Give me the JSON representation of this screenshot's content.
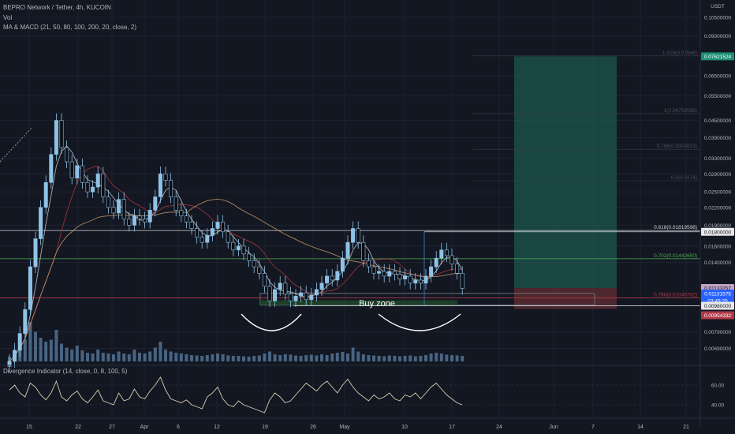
{
  "header": {
    "title": "BEPRO Network / Tether, 4h, KUCOIN",
    "vol_label": "Vol",
    "ma_macd_label": "MA & MACD (21, 50, 80, 100, 200, 20, close, 2)"
  },
  "currency_label": "USDT",
  "oscillator": {
    "label": "Divergence Indicator (14, close, 0, 8, 100, 5)"
  },
  "annotations": {
    "buy_zone": "Buy zone"
  },
  "colors": {
    "background": "#131722",
    "candle_up": "#8fc3e6",
    "candle_down": "#0b0e15",
    "volume": "#5b7fa3",
    "fib_white": "#d1d4dc",
    "fib_green": "#4caf50",
    "fib_red": "#b03a48",
    "target_zone": "#1e574d",
    "stop_zone": "#5a2a30",
    "oscillator_line": "#d8d0b0"
  },
  "chart_data": {
    "type": "candlestick",
    "symbol": "BEPRO/USDT",
    "timeframe": "4h",
    "exchange": "KUCOIN",
    "y_scale": "log",
    "x_ticks": [
      "15",
      "22",
      "27",
      "Apr",
      "6",
      "12",
      "19",
      "26",
      "May",
      "10",
      "17",
      "24",
      "Jun",
      "7",
      "14",
      "21"
    ],
    "y_ticks": [
      "0.10500000",
      "0.09000000",
      "0.06500000",
      "0.05500000",
      "0.04500000",
      "0.03900000",
      "0.03300000",
      "0.02900000",
      "0.02500000",
      "0.02200000",
      "0.01900000",
      "0.01600000",
      "0.01400000",
      "0.00790000",
      "0.00690000"
    ],
    "price_labels": [
      {
        "value": "0.07621524",
        "kind": "target"
      },
      {
        "value": "0.01800000",
        "kind": "level"
      },
      {
        "value": "0.01133257",
        "kind": "marker"
      },
      {
        "value": "0.01131575",
        "kind": "last_price"
      },
      {
        "value": "03:49:20",
        "kind": "countdown"
      },
      {
        "value": "0.00980000",
        "kind": "level"
      },
      {
        "value": "0.00954332",
        "kind": "stop"
      }
    ],
    "fib_levels": [
      {
        "label": "1.618(0.07648)",
        "price": 0.07648,
        "style": "faint"
      },
      {
        "label": "1(0.04759598)",
        "price": 0.04759598,
        "style": "faint"
      },
      {
        "label": "0.786(0.0354823)",
        "price": 0.0354823,
        "style": "faint"
      },
      {
        "label": "0.5(0.0274)",
        "price": 0.0274,
        "style": "faint"
      },
      {
        "label": "0.618(0.01819598)",
        "price": 0.01819598,
        "style": "white"
      },
      {
        "label": "0.702(0.01442650)",
        "price": 0.0144265,
        "style": "green"
      },
      {
        "label": "0.786(0.01045702)",
        "price": 0.01045702,
        "style": "red"
      }
    ],
    "close_series": [
      0.0062,
      0.0068,
      0.0078,
      0.0095,
      0.0135,
      0.017,
      0.022,
      0.027,
      0.034,
      0.045,
      0.036,
      0.032,
      0.028,
      0.031,
      0.027,
      0.025,
      0.026,
      0.029,
      0.024,
      0.022,
      0.021,
      0.0235,
      0.02,
      0.019,
      0.0205,
      0.02,
      0.0195,
      0.0215,
      0.024,
      0.029,
      0.0275,
      0.024,
      0.0215,
      0.0205,
      0.0195,
      0.0185,
      0.0172,
      0.0165,
      0.0175,
      0.0185,
      0.0195,
      0.018,
      0.0165,
      0.0155,
      0.016,
      0.015,
      0.0142,
      0.0135,
      0.0128,
      0.0115,
      0.0102,
      0.0112,
      0.0118,
      0.0108,
      0.0102,
      0.0106,
      0.0109,
      0.0103,
      0.0107,
      0.0112,
      0.0118,
      0.0125,
      0.0121,
      0.013,
      0.0145,
      0.0165,
      0.0185,
      0.0165,
      0.0142,
      0.0135,
      0.0128,
      0.013,
      0.0125,
      0.013,
      0.0127,
      0.0122,
      0.0125,
      0.0118,
      0.0121,
      0.0118,
      0.0125,
      0.0135,
      0.0145,
      0.0155,
      0.0148,
      0.0138,
      0.0128,
      0.0113
    ],
    "volume_scale": [
      0.12,
      0.18,
      0.3,
      0.55,
      1.0,
      0.75,
      0.6,
      0.5,
      0.55,
      0.8,
      0.45,
      0.35,
      0.3,
      0.4,
      0.28,
      0.22,
      0.2,
      0.3,
      0.22,
      0.2,
      0.18,
      0.25,
      0.2,
      0.18,
      0.3,
      0.22,
      0.2,
      0.25,
      0.35,
      0.5,
      0.3,
      0.25,
      0.22,
      0.2,
      0.18,
      0.16,
      0.15,
      0.14,
      0.16,
      0.18,
      0.2,
      0.18,
      0.15,
      0.14,
      0.14,
      0.13,
      0.12,
      0.14,
      0.15,
      0.2,
      0.25,
      0.18,
      0.16,
      0.18,
      0.17,
      0.15,
      0.14,
      0.16,
      0.17,
      0.15,
      0.18,
      0.16,
      0.2,
      0.22,
      0.24,
      0.2,
      0.35,
      0.25,
      0.18,
      0.16,
      0.15,
      0.14,
      0.13,
      0.15,
      0.14,
      0.13,
      0.14,
      0.15,
      0.13,
      0.14,
      0.16,
      0.2,
      0.22,
      0.2,
      0.17,
      0.16,
      0.15,
      0.14
    ],
    "oscillator": {
      "y_ticks": [
        "60.00",
        "40.00"
      ],
      "values": [
        55,
        60,
        52,
        48,
        62,
        58,
        50,
        45,
        52,
        64,
        48,
        44,
        50,
        54,
        46,
        42,
        48,
        55,
        44,
        42,
        40,
        52,
        44,
        46,
        56,
        48,
        46,
        54,
        60,
        68,
        55,
        46,
        44,
        42,
        45,
        40,
        38,
        36,
        48,
        52,
        58,
        46,
        40,
        38,
        44,
        40,
        38,
        36,
        34,
        32,
        45,
        52,
        48,
        42,
        44,
        50,
        56,
        62,
        58,
        54,
        60,
        64,
        58,
        52,
        60,
        66,
        58,
        52,
        48,
        44,
        50,
        46,
        48,
        52,
        46,
        44,
        50,
        48,
        52,
        46,
        52,
        58,
        62,
        56,
        50,
        46,
        42,
        40
      ]
    },
    "last_price": 0.01131575
  }
}
